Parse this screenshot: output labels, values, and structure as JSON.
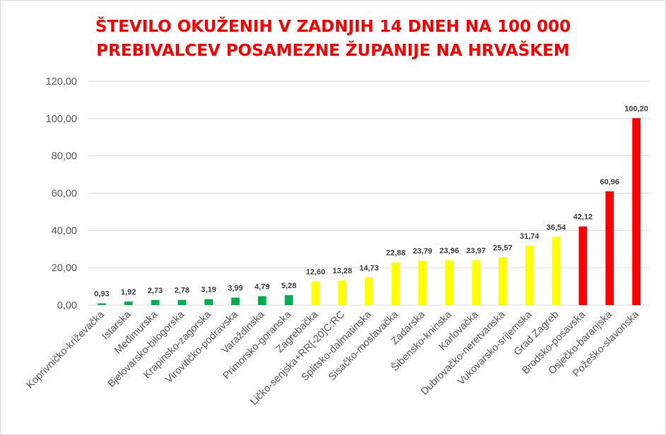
{
  "chart_data": {
    "type": "bar",
    "title_lines": [
      "ŠTEVILO OKUŽENIH V ZADNJIH 14 DNEH NA 100 000",
      "PREBIVALCEV POSAMEZNE ŽUPANIJE NA HRVAŠKEM"
    ],
    "xlabel": "",
    "ylabel": "",
    "ylim": [
      0,
      120
    ],
    "yticks": [
      "0,00",
      "20,00",
      "40,00",
      "60,00",
      "80,00",
      "100,00",
      "120,00"
    ],
    "grid": true,
    "legend": "none",
    "categories": [
      "Koprivničko-križevačka",
      "Istarska",
      "Međimurska",
      "Bjelovarsko-bilogorska",
      "Krapinsko-zagorska",
      "Virovitičko-podravska",
      "Varaždinska",
      "Primorsko-goranska",
      "Zagrebačka",
      "Ličko-senjska+RR[-20]C:RC",
      "Splitsko-dalmatinska",
      "Sisačko-moslavačka",
      "Zadarska",
      "Šibensko-kninska",
      "Karlovačka",
      "Dubrovačko-neretvanska",
      "Vukovarsko-srijemska",
      "Grad Zagreb",
      "Brodsko-posavska",
      "Osječko-baranjska",
      "Požeško-slavonska"
    ],
    "values": [
      0.93,
      1.92,
      2.73,
      2.78,
      3.19,
      3.99,
      4.79,
      5.28,
      12.6,
      13.28,
      14.73,
      22.88,
      23.79,
      23.96,
      23.97,
      25.57,
      31.74,
      36.54,
      42.12,
      60.96,
      100.2
    ],
    "labels": [
      "0,93",
      "1,92",
      "2,73",
      "2,78",
      "3,19",
      "3,99",
      "4,79",
      "5,28",
      "12,60",
      "13,28",
      "14,73",
      "22,88",
      "23,79",
      "23,96",
      "23,97",
      "25,57",
      "31,74",
      "36,54",
      "42,12",
      "60,96",
      "100,20"
    ],
    "bar_colors": [
      "#00b050",
      "#00b050",
      "#00b050",
      "#00b050",
      "#00b050",
      "#00b050",
      "#00b050",
      "#00b050",
      "#ffff00",
      "#ffff00",
      "#ffff00",
      "#ffff00",
      "#ffff00",
      "#ffff00",
      "#ffff00",
      "#ffff00",
      "#ffff00",
      "#ffff00",
      "#ff0000",
      "#ff0000",
      "#ff0000"
    ],
    "colors": {
      "green": "#00b050",
      "yellow": "#ffff00",
      "red": "#ff0000",
      "title": "#ff0000",
      "grid": "#d9d9d9",
      "axis_text": "#595959",
      "label_text": "#404040"
    }
  }
}
